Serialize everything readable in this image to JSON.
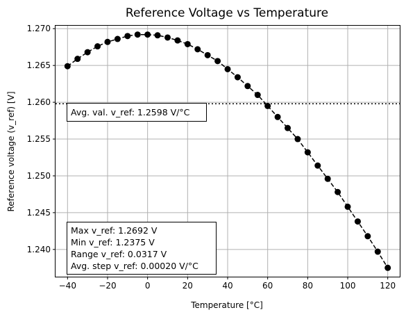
{
  "chart_data": {
    "type": "line",
    "title": "Reference Voltage vs Temperature",
    "xlabel": "Temperature [°C]",
    "ylabel": "Reference voltage (v_ref) [V]",
    "xlim": [
      -46,
      126
    ],
    "ylim": [
      1.2363,
      1.2704
    ],
    "xticks": [
      -40,
      -20,
      0,
      20,
      40,
      60,
      80,
      100,
      120
    ],
    "xtick_labels": [
      "−40",
      "−20",
      "0",
      "20",
      "40",
      "60",
      "80",
      "100",
      "120"
    ],
    "yticks": [
      1.24,
      1.245,
      1.25,
      1.255,
      1.26,
      1.265,
      1.27
    ],
    "ytick_labels": [
      "1.240",
      "1.245",
      "1.250",
      "1.255",
      "1.260",
      "1.265",
      "1.270"
    ],
    "grid": true,
    "series": [
      {
        "style": "dashed line with circle markers",
        "color": "#000000",
        "x": [
          -40,
          -35,
          -30,
          -25,
          -20,
          -15,
          -10,
          -5,
          0,
          5,
          10,
          15,
          20,
          25,
          30,
          35,
          40,
          45,
          50,
          55,
          60,
          65,
          70,
          75,
          80,
          85,
          90,
          95,
          100,
          105,
          110,
          115,
          120
        ],
        "y": [
          1.2649,
          1.2659,
          1.2668,
          1.2676,
          1.2682,
          1.2686,
          1.269,
          1.2692,
          1.2692,
          1.2691,
          1.2688,
          1.2684,
          1.2679,
          1.2672,
          1.2664,
          1.2656,
          1.2645,
          1.2634,
          1.2622,
          1.261,
          1.2595,
          1.258,
          1.2565,
          1.255,
          1.2532,
          1.2514,
          1.2496,
          1.2478,
          1.2458,
          1.2438,
          1.2418,
          1.2397,
          1.2375
        ]
      }
    ],
    "reference_line": {
      "y": 1.2598,
      "style": "dotted",
      "color": "#000000"
    },
    "annotations": {
      "average": "Avg. val. v_ref: 1.2598 V/°C",
      "stats": [
        "Max v_ref: 1.2692 V",
        "Min v_ref: 1.2375 V",
        "Range v_ref: 0.0317 V",
        "Avg. step v_ref: 0.00020 V/°C"
      ]
    }
  }
}
